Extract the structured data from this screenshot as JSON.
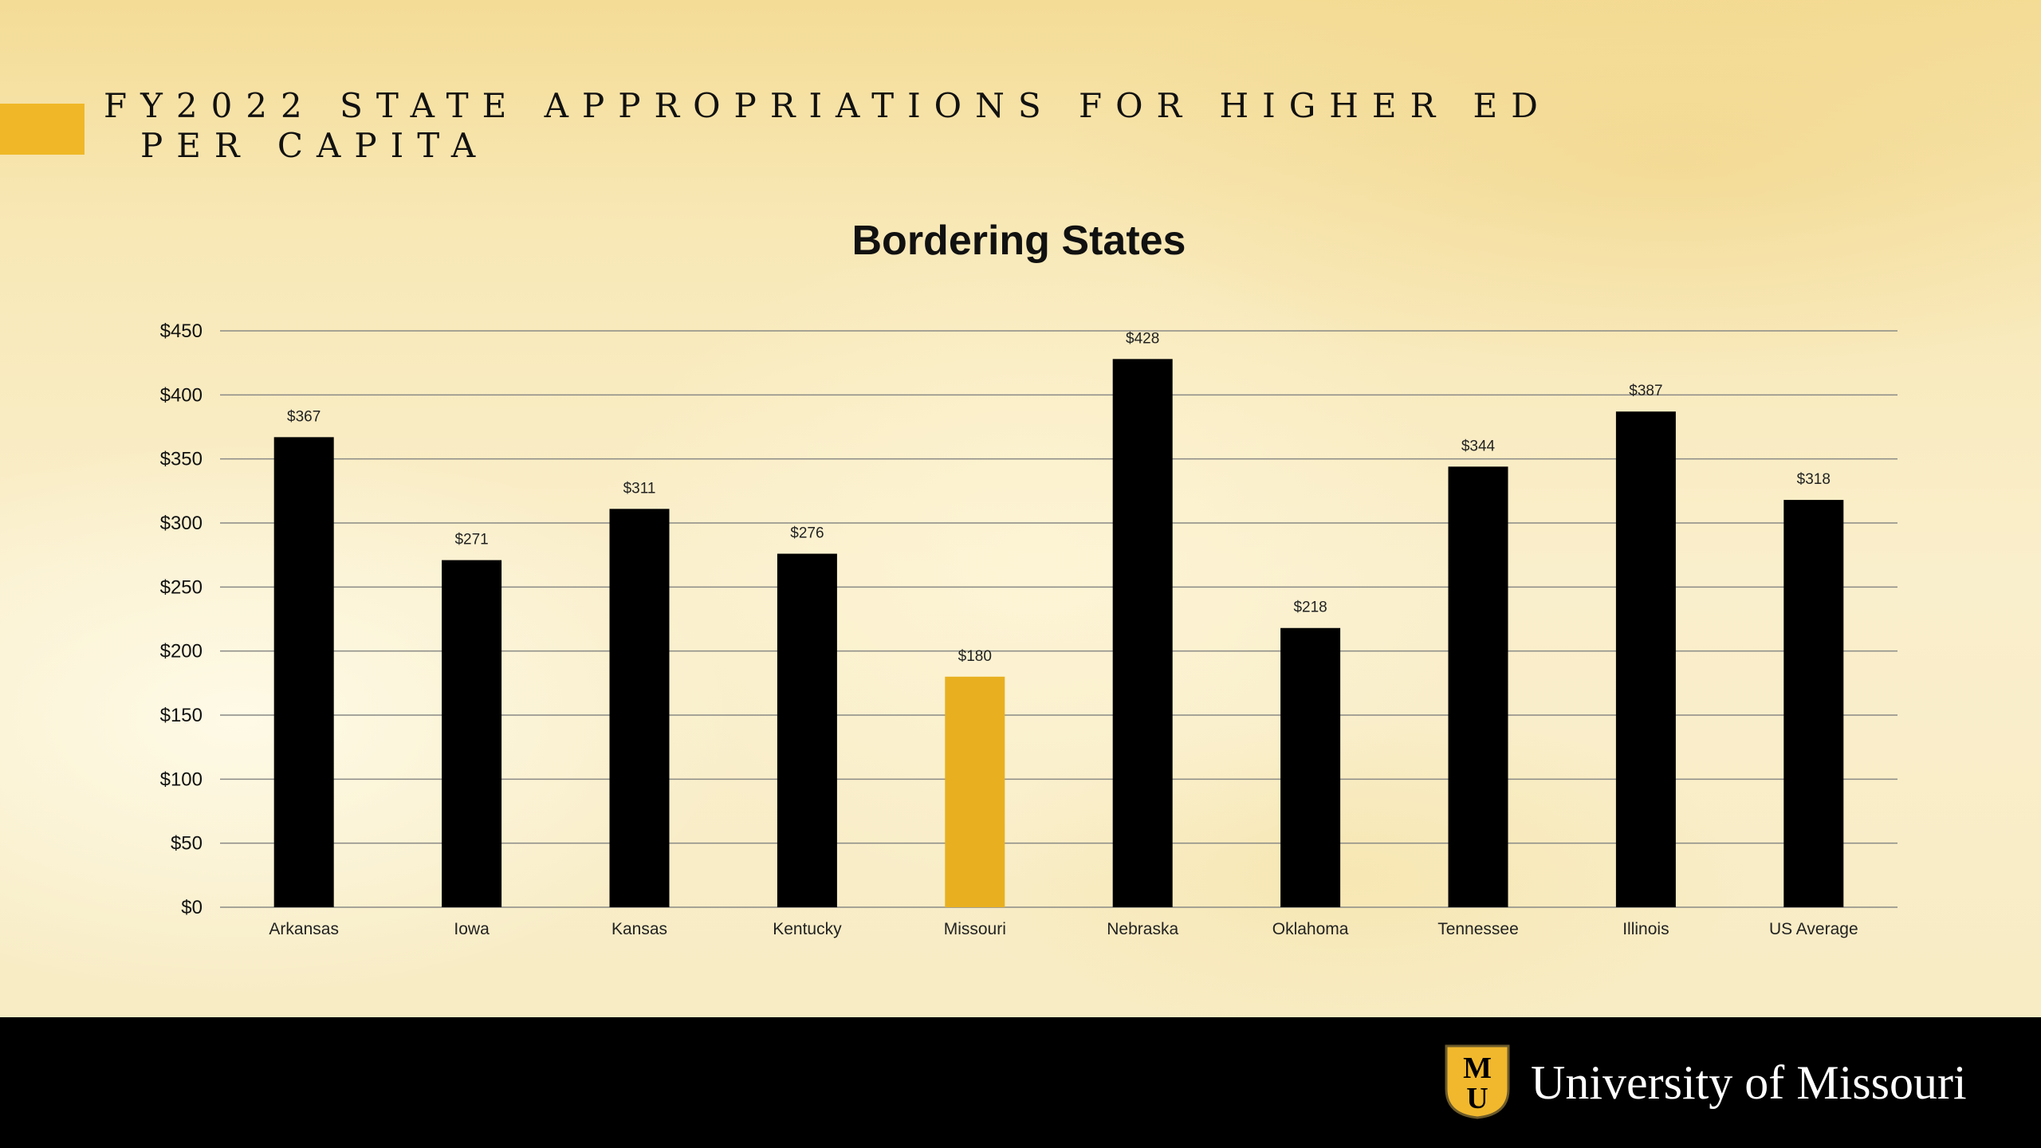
{
  "slide": {
    "title_line1": "FY2022 STATE APPROPRIATIONS FOR HIGHER ED",
    "title_line2": "PER CAPITA",
    "accent_color": "#f0b828"
  },
  "footer": {
    "university_name": "University of Missouri",
    "logo_letters": "MU",
    "logo_icon": "university-of-missouri-logo-icon",
    "background_color": "#000000"
  },
  "chart_data": {
    "type": "bar",
    "title": "Bordering States",
    "xlabel": "",
    "ylabel": "",
    "ylim": [
      0,
      450
    ],
    "ytick_values": [
      0,
      50,
      100,
      150,
      200,
      250,
      300,
      350,
      400,
      450
    ],
    "ytick_labels": [
      "$0",
      "$50",
      "$100",
      "$150",
      "$200",
      "$250",
      "$300",
      "$350",
      "$400",
      "$450"
    ],
    "grid": true,
    "legend": "none",
    "categories": [
      "Arkansas",
      "Iowa",
      "Kansas",
      "Kentucky",
      "Missouri",
      "Nebraska",
      "Oklahoma",
      "Tennessee",
      "Illinois",
      "US Average"
    ],
    "values": [
      367,
      271,
      311,
      276,
      180,
      428,
      218,
      344,
      387,
      318
    ],
    "data_labels": [
      "$367",
      "$271",
      "$311",
      "$276",
      "$180",
      "$428",
      "$218",
      "$344",
      "$387",
      "$318"
    ],
    "bar_color": "#000000",
    "highlight_category": "Missouri",
    "highlight_color": "#e8b020"
  }
}
